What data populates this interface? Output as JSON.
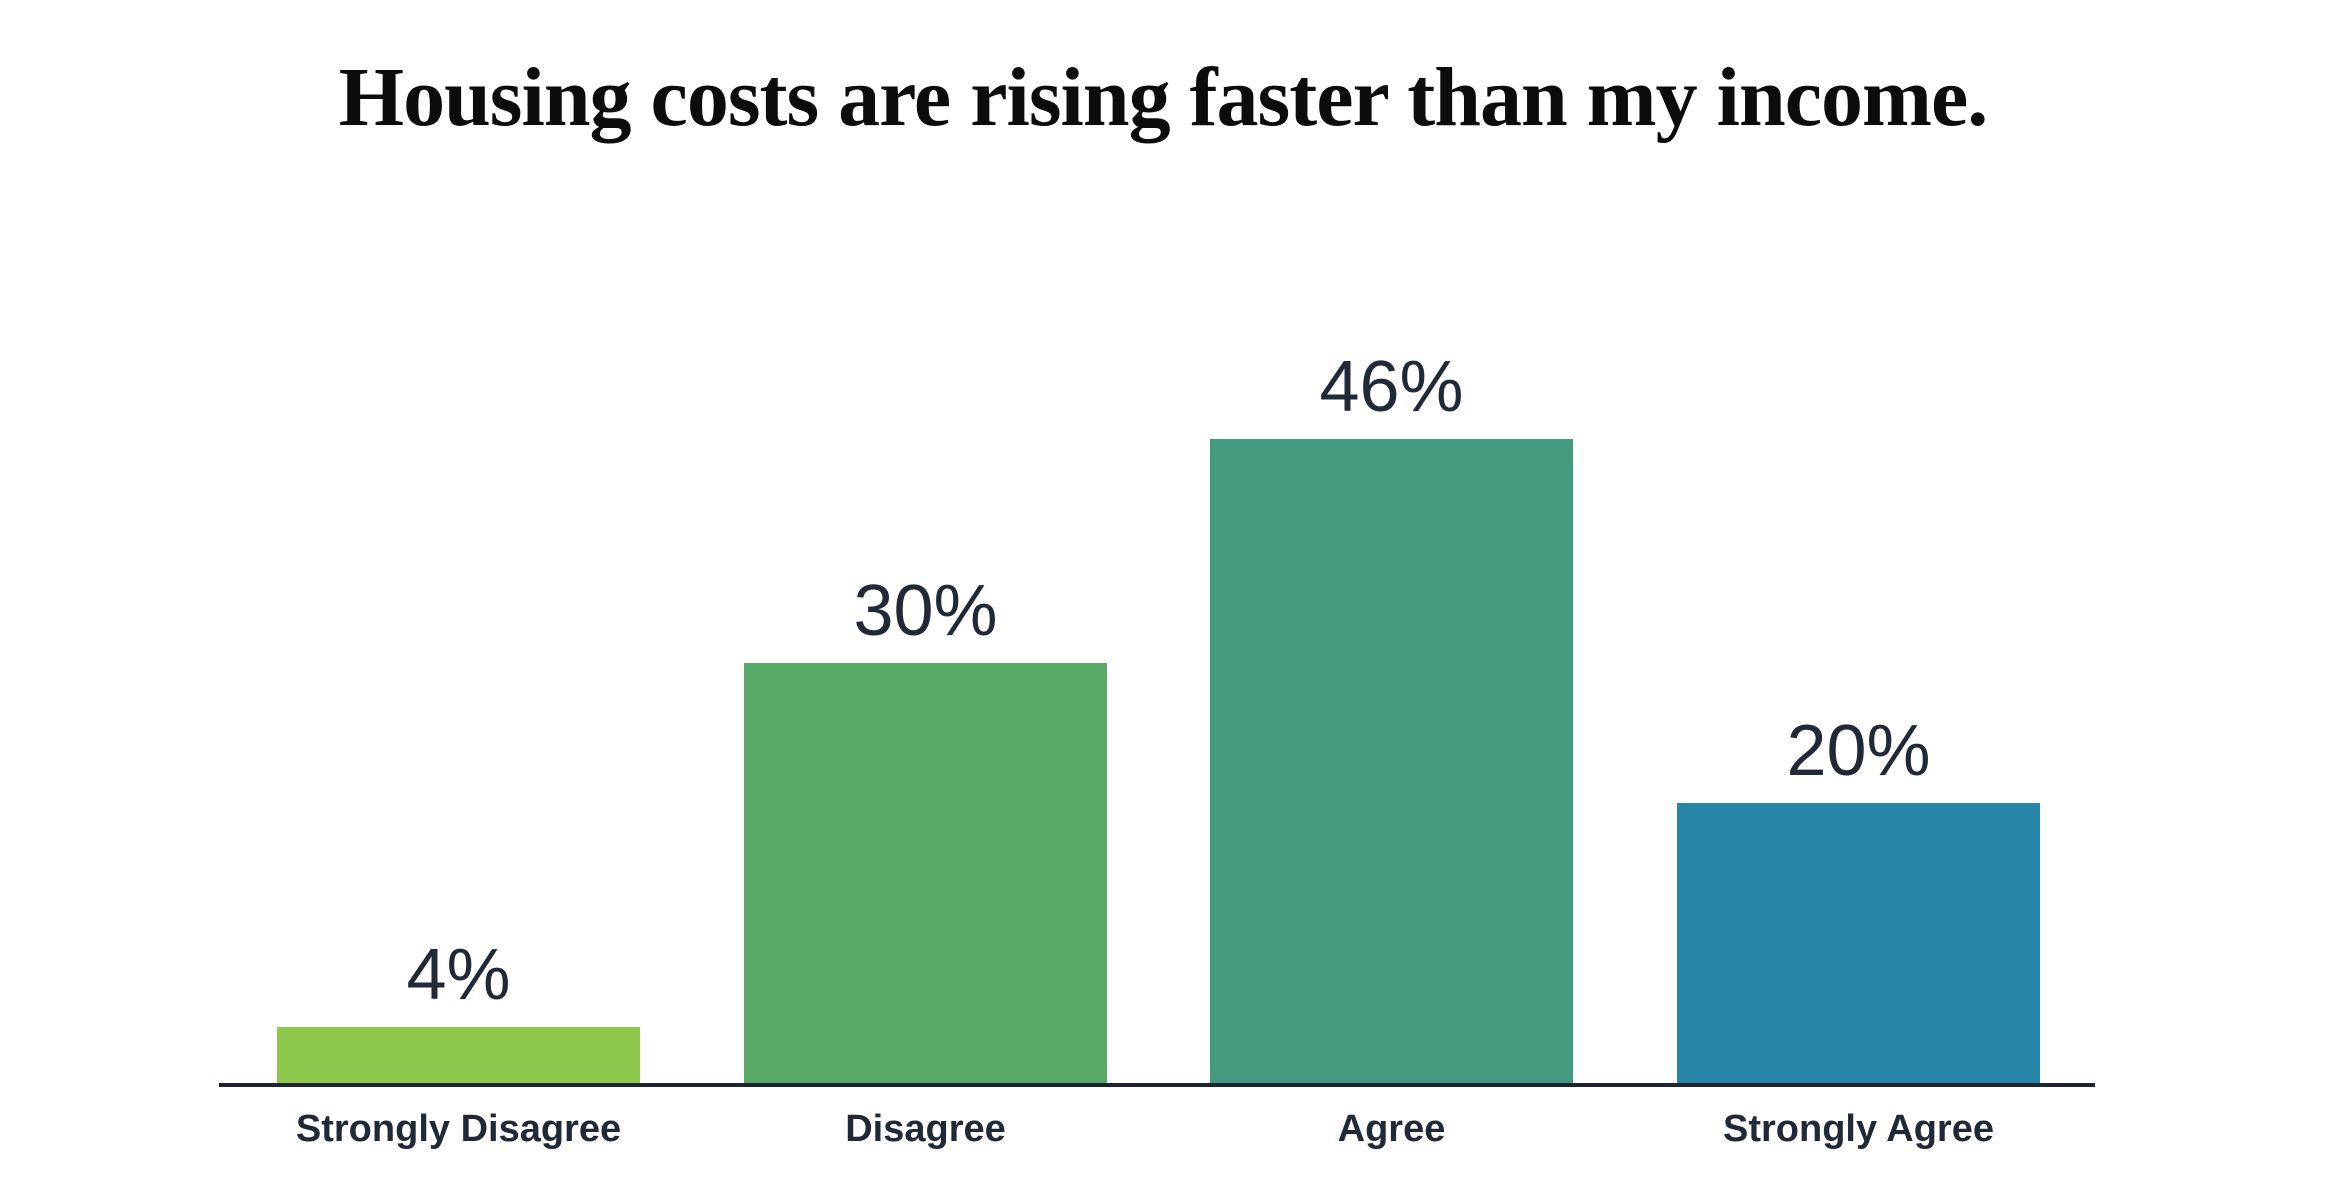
{
  "page": {
    "background": "#FFFFFF"
  },
  "chart_data": {
    "type": "bar",
    "title": "Housing costs are rising faster than my income.",
    "categories": [
      "Strongly Disagree",
      "Disagree",
      "Agree",
      "Strongly Agree"
    ],
    "values": [
      4,
      30,
      46,
      20
    ],
    "value_labels": [
      "4%",
      "30%",
      "46%",
      "20%"
    ],
    "bar_colors": [
      "#8DC74B",
      "#5AAA67",
      "#449A7F",
      "#2786A8"
    ],
    "xlabel": "",
    "ylabel": "",
    "ylim": [
      0,
      50
    ],
    "grid": false,
    "legend": null,
    "title_color": "#0C0C0C",
    "label_color": "#1F2937",
    "axis_line_color": "#1E2430"
  }
}
